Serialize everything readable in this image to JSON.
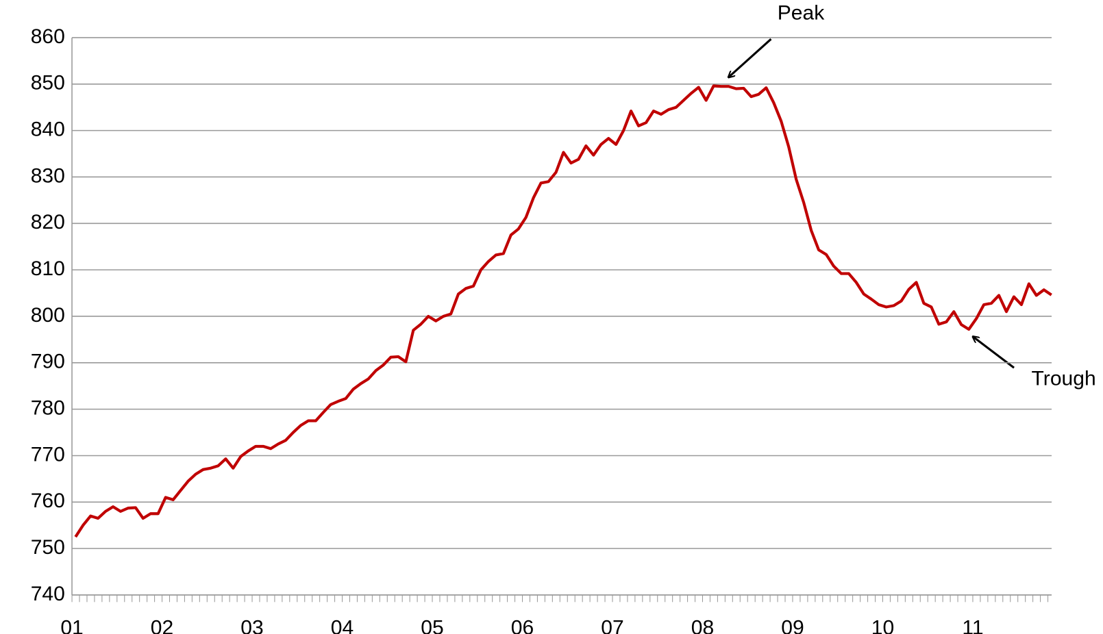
{
  "chart_data": {
    "type": "line",
    "categories": [
      "01",
      null,
      null,
      null,
      null,
      null,
      null,
      null,
      null,
      null,
      null,
      null,
      "02",
      null,
      null,
      null,
      null,
      null,
      null,
      null,
      null,
      null,
      null,
      null,
      "03",
      null,
      null,
      null,
      null,
      null,
      null,
      null,
      null,
      null,
      null,
      null,
      "04",
      null,
      null,
      null,
      null,
      null,
      null,
      null,
      null,
      null,
      null,
      null,
      "05",
      null,
      null,
      null,
      null,
      null,
      null,
      null,
      null,
      null,
      null,
      null,
      "06",
      null,
      null,
      null,
      null,
      null,
      null,
      null,
      null,
      null,
      null,
      null,
      "07",
      null,
      null,
      null,
      null,
      null,
      null,
      null,
      null,
      null,
      null,
      null,
      "08",
      null,
      null,
      null,
      null,
      null,
      null,
      null,
      null,
      null,
      null,
      null,
      "09",
      null,
      null,
      null,
      null,
      null,
      null,
      null,
      null,
      null,
      null,
      null,
      "10",
      null,
      null,
      null,
      null,
      null,
      null,
      null,
      null,
      null,
      null,
      null,
      "11",
      null,
      null,
      null,
      null,
      null,
      null,
      null,
      null,
      null,
      null
    ],
    "values": [
      752.5,
      755,
      757,
      756.5,
      758,
      759,
      758,
      758.7,
      758.8,
      756.5,
      757.5,
      757.5,
      761,
      760.5,
      762.5,
      764.5,
      766,
      767,
      767.3,
      767.8,
      769.3,
      767.3,
      769.8,
      771,
      772,
      772,
      771.5,
      772.5,
      773.3,
      775,
      776.5,
      777.5,
      777.5,
      779.3,
      781,
      781.7,
      782.3,
      784.3,
      785.5,
      786.5,
      788.3,
      789.5,
      791.2,
      791.3,
      790.2,
      797,
      798.3,
      800,
      799,
      800,
      800.5,
      804.8,
      806,
      806.5,
      810,
      811.8,
      813.2,
      813.5,
      817.5,
      818.8,
      821.3,
      825.5,
      828.7,
      829,
      831,
      835.3,
      833,
      833.8,
      836.7,
      834.7,
      837,
      838.3,
      837,
      840,
      844.2,
      841,
      841.7,
      844.2,
      843.5,
      844.5,
      845,
      846.5,
      848,
      849.3,
      846.5,
      849.6,
      849.5,
      849.5,
      849,
      849.1,
      847.3,
      847.8,
      849.2,
      846,
      842,
      836.5,
      829.5,
      824.5,
      818.5,
      814.3,
      813.3,
      810.8,
      809.2,
      809.2,
      807.3,
      804.8,
      803.7,
      802.5,
      802,
      802.3,
      803.3,
      805.8,
      807.3,
      802.8,
      802,
      798.3,
      798.8,
      801,
      798.2,
      797.2,
      799.5,
      802.5,
      802.8,
      804.5,
      801,
      804.2,
      802.5,
      807,
      804.5,
      805.7,
      804.6
    ],
    "color": "#c00000",
    "ylim": [
      740,
      860
    ],
    "yticks": [
      740,
      750,
      760,
      770,
      780,
      790,
      800,
      810,
      820,
      830,
      840,
      850,
      860
    ],
    "grid": true,
    "annotations": [
      "Peak",
      "Trough"
    ]
  }
}
